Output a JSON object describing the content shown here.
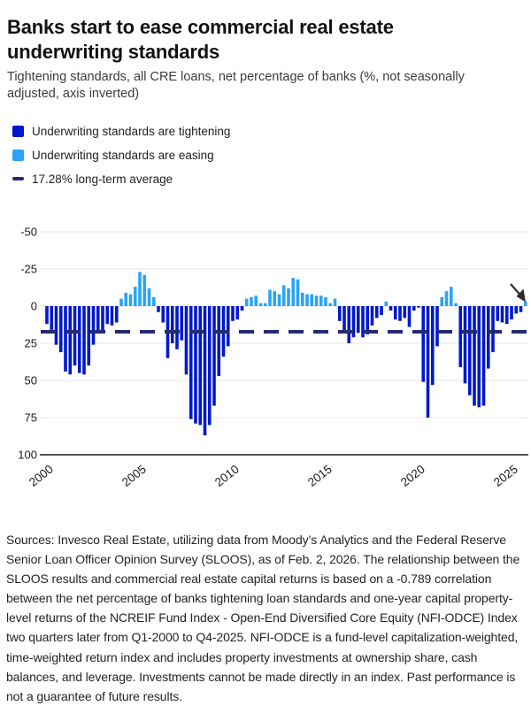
{
  "header": {
    "title": "Banks start to ease commercial real estate underwriting standards",
    "subtitle": "Tightening standards, all CRE loans, net percentage of banks (%, not seasonally adjusted, axis inverted)"
  },
  "legend": {
    "items": [
      {
        "label": "Underwriting standards are tightening",
        "color": "#0018cd",
        "type": "square"
      },
      {
        "label": "Underwriting standards are easing",
        "color": "#2aa4f4",
        "type": "square"
      },
      {
        "label": "17.28% long-term average",
        "color": "#232b72",
        "type": "dash"
      }
    ]
  },
  "chart_data": {
    "type": "bar",
    "title": "Tightening standards, all CRE loans, net percentage of banks",
    "units": "% net percentage of banks, positive = tightening, negative = easing",
    "axis_inverted": true,
    "frequency": "quarterly",
    "x_start": "Q1-2000",
    "x_end": "Q4-2025",
    "ylim": [
      -50,
      100
    ],
    "yticks": [
      -50,
      -25,
      0,
      25,
      50,
      75,
      100
    ],
    "xticks": [
      "2000",
      "2005",
      "2010",
      "2015",
      "2020",
      "2025"
    ],
    "long_term_average": 17.28,
    "grid": true,
    "legend_position": "top-left",
    "colors": {
      "tightening": "#0018cd",
      "easing": "#2aa4f4",
      "average_line": "#232b72",
      "gridline": "#e4e4e4",
      "axis": "#1a1a1a"
    },
    "years": [
      {
        "year": 2000,
        "q": [
          12,
          16,
          26,
          31
        ]
      },
      {
        "year": 2001,
        "q": [
          44,
          46,
          40,
          45
        ]
      },
      {
        "year": 2002,
        "q": [
          46,
          40,
          26,
          18
        ]
      },
      {
        "year": 2003,
        "q": [
          17,
          12,
          13,
          11
        ]
      },
      {
        "year": 2004,
        "q": [
          -5,
          -9,
          -8,
          -13
        ]
      },
      {
        "year": 2005,
        "q": [
          -23,
          -21,
          -12,
          -6
        ]
      },
      {
        "year": 2006,
        "q": [
          4,
          11,
          35,
          25
        ]
      },
      {
        "year": 2007,
        "q": [
          29,
          23,
          46,
          76
        ]
      },
      {
        "year": 2008,
        "q": [
          79,
          80,
          87,
          80
        ]
      },
      {
        "year": 2009,
        "q": [
          67,
          47,
          34,
          27
        ]
      },
      {
        "year": 2010,
        "q": [
          10,
          9,
          3,
          -5
        ]
      },
      {
        "year": 2011,
        "q": [
          -6,
          -7,
          -2,
          -2
        ]
      },
      {
        "year": 2012,
        "q": [
          -11,
          -10,
          -8,
          -14
        ]
      },
      {
        "year": 2013,
        "q": [
          -12,
          -19,
          -18,
          -9
        ]
      },
      {
        "year": 2014,
        "q": [
          -8,
          -8,
          -7,
          -7
        ]
      },
      {
        "year": 2015,
        "q": [
          -6,
          -2,
          -5,
          10
        ]
      },
      {
        "year": 2016,
        "q": [
          17,
          25,
          21,
          18
        ]
      },
      {
        "year": 2017,
        "q": [
          21,
          19,
          13,
          8
        ]
      },
      {
        "year": 2018,
        "q": [
          6,
          -3,
          3,
          9
        ]
      },
      {
        "year": 2019,
        "q": [
          10,
          8,
          14,
          3
        ]
      },
      {
        "year": 2020,
        "q": [
          1,
          51,
          75,
          53
        ]
      },
      {
        "year": 2021,
        "q": [
          27,
          -6,
          -10,
          -13
        ]
      },
      {
        "year": 2022,
        "q": [
          -2,
          41,
          52,
          60
        ]
      },
      {
        "year": 2023,
        "q": [
          67,
          68,
          67,
          42
        ]
      },
      {
        "year": 2024,
        "q": [
          31,
          10,
          11,
          12
        ]
      },
      {
        "year": 2025,
        "q": [
          9,
          5,
          4,
          -3
        ]
      }
    ]
  },
  "cursor": {
    "icon": "mouse-pointer-arrow",
    "over": "last-bar-Q4-2025"
  },
  "footer": {
    "text": "Sources: Invesco Real Estate, utilizing data from Moody’s Analytics and the Federal Reserve Senior Loan Officer Opinion Survey (SLOOS), as of Feb. 2, 2026. The relationship between the SLOOS results and commercial real estate capital returns is based on a -0.789 correlation between the net percentage of banks tightening loan standards and one-year capital property-level returns of the NCREIF Fund Index - Open-End Diversified Core Equity (NFI-ODCE) Index two quarters later from Q1-2000 to Q4-2025. NFI-ODCE is a fund-level capitalization-weighted, time-weighted return index and includes property investments at ownership share, cash balances, and leverage. Investments cannot be made directly in an index. Past performance is not a guarantee of future results."
  }
}
